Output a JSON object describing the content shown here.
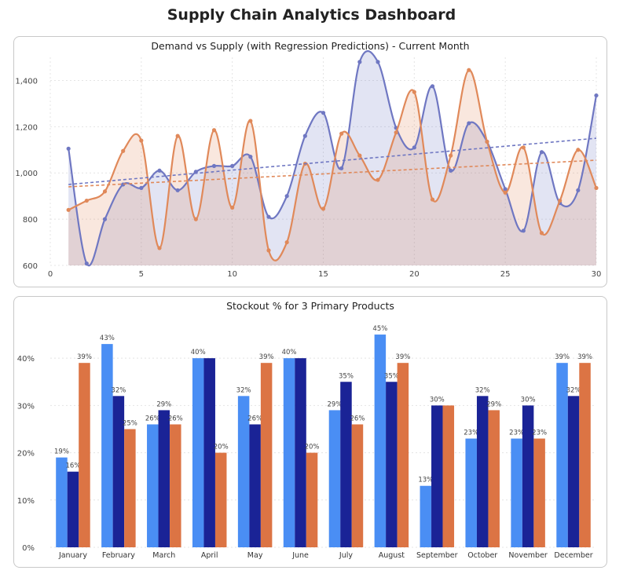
{
  "dashboard": {
    "title": "Supply Chain Analytics Dashboard"
  },
  "chart_data": [
    {
      "type": "area",
      "title": "Demand vs Supply (with Regression Predictions) - Current Month",
      "xlim": [
        0,
        30
      ],
      "ylim": [
        600,
        1500
      ],
      "x_ticks": [
        0,
        5,
        10,
        15,
        20,
        25,
        30
      ],
      "y_ticks": [
        "600",
        "800",
        "1,000",
        "1,200",
        "1,400"
      ],
      "y_tick_values": [
        600,
        800,
        1000,
        1200,
        1400
      ],
      "grid": true,
      "legend": "none",
      "x": [
        1,
        2,
        3,
        4,
        5,
        6,
        7,
        8,
        9,
        10,
        11,
        12,
        13,
        14,
        15,
        16,
        17,
        18,
        19,
        20,
        21,
        22,
        23,
        24,
        25,
        26,
        27,
        28,
        29,
        30
      ],
      "series": [
        {
          "color": "#6f77c2",
          "values": [
            1105,
            608,
            800,
            950,
            935,
            1010,
            925,
            1005,
            1030,
            1030,
            1070,
            810,
            900,
            1160,
            1260,
            1020,
            1480,
            1480,
            1195,
            1110,
            1375,
            1010,
            1215,
            1135,
            930,
            750,
            1090,
            870,
            925,
            1335
          ],
          "trend": [
            950,
            1150
          ]
        },
        {
          "color": "#e0895a",
          "values": [
            840,
            880,
            920,
            1095,
            1140,
            675,
            1160,
            800,
            1185,
            850,
            1225,
            665,
            700,
            1040,
            845,
            1170,
            1075,
            970,
            1175,
            1350,
            885,
            1075,
            1445,
            1135,
            915,
            1110,
            740,
            880,
            1100,
            935
          ],
          "trend": [
            940,
            1055
          ]
        }
      ]
    },
    {
      "type": "bar",
      "title": "Stockout % for 3 Primary Products",
      "categories": [
        "January",
        "February",
        "March",
        "April",
        "May",
        "June",
        "July",
        "August",
        "September",
        "October",
        "November",
        "December"
      ],
      "ylim": [
        0,
        48
      ],
      "y_ticks": [
        "0%",
        "10%",
        "20%",
        "30%",
        "40%"
      ],
      "y_tick_values": [
        0,
        10,
        20,
        30,
        40
      ],
      "grid": true,
      "legend": "none",
      "series": [
        {
          "color": "#4a8ef4",
          "values": [
            19,
            43,
            26,
            40,
            32,
            40,
            29,
            45,
            13,
            23,
            23,
            39
          ],
          "labels": [
            "19%",
            "43%",
            "26%",
            "40%",
            "32%",
            "40%",
            "29%",
            "45%",
            "13%",
            "23%",
            "23%",
            "39%"
          ]
        },
        {
          "color": "#1a2396",
          "values": [
            16,
            32,
            29,
            40,
            26,
            40,
            35,
            35,
            30,
            32,
            30,
            32
          ],
          "labels": [
            "16%",
            "32%",
            "29%",
            "",
            "26%",
            "",
            "35%",
            "35%",
            "30%",
            "32%",
            "30%",
            "32%"
          ]
        },
        {
          "color": "#dc7444",
          "values": [
            39,
            25,
            26,
            20,
            39,
            20,
            26,
            39,
            30,
            29,
            23,
            39
          ],
          "labels": [
            "39%",
            "25%",
            "26%",
            "20%",
            "39%",
            "20%",
            "26%",
            "39%",
            "",
            "29%",
            "23%",
            "39%"
          ]
        }
      ]
    }
  ]
}
